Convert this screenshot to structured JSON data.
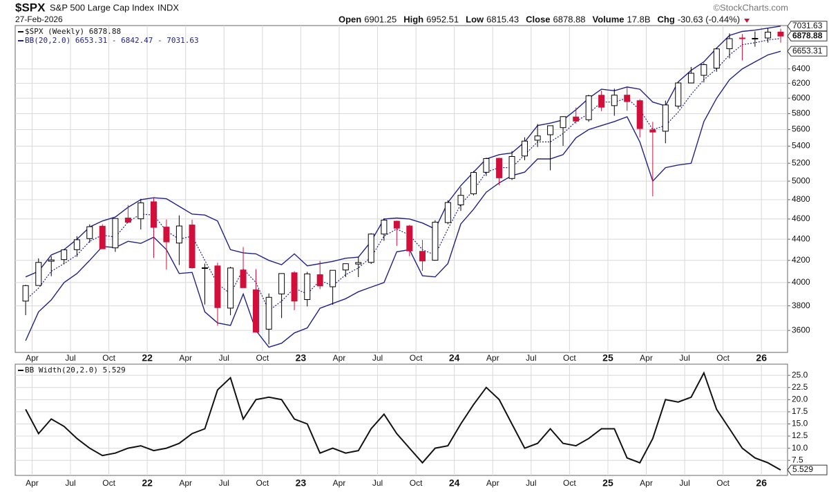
{
  "header": {
    "symbol": "$SPX",
    "name": "S&P 500 Large Cap Index",
    "exchange": "INDX",
    "date": "27-Feb-2026",
    "quote": [
      {
        "label": "Open",
        "value": "6901.25"
      },
      {
        "label": "High",
        "value": "6952.51"
      },
      {
        "label": "Low",
        "value": "6815.43"
      },
      {
        "label": "Close",
        "value": "6878.88"
      },
      {
        "label": "Volume",
        "value": "17.8B"
      },
      {
        "label": "Chg",
        "value": "-30.63 (-0.44%)"
      }
    ],
    "source": "©StockCharts.com"
  },
  "chart_data": [
    {
      "type": "candlestick",
      "legend": [
        "$SPX (Weekly) 6878.88",
        "BB(20,2.0) 6653.31 - 6842.47 - 7031.63"
      ],
      "log_scale": true,
      "grid": true,
      "up_color": "#000000",
      "down_color": "#d0103a",
      "band_color": "#20208c",
      "xlim": [
        2021.14,
        2026.17
      ],
      "ylim": [
        3430,
        7040
      ],
      "yticks": [
        3600,
        3800,
        4000,
        4200,
        4400,
        4600,
        4800,
        5000,
        5200,
        5400,
        5600,
        5800,
        6000,
        6200,
        6400
      ],
      "last_labels": [
        7031.63,
        6878.88,
        6653.31
      ],
      "xticks": [
        {
          "value": 2021.25,
          "label": "Apr"
        },
        {
          "value": 2021.5,
          "label": "Jul"
        },
        {
          "value": 2021.75,
          "label": "Oct"
        },
        {
          "value": 2022,
          "label": "22"
        },
        {
          "value": 2022.25,
          "label": "Apr"
        },
        {
          "value": 2022.5,
          "label": "Jul"
        },
        {
          "value": 2022.75,
          "label": "Oct"
        },
        {
          "value": 2023,
          "label": "23"
        },
        {
          "value": 2023.25,
          "label": "Apr"
        },
        {
          "value": 2023.5,
          "label": "Jul"
        },
        {
          "value": 2023.75,
          "label": "Oct"
        },
        {
          "value": 2024,
          "label": "24"
        },
        {
          "value": 2024.25,
          "label": "Apr"
        },
        {
          "value": 2024.5,
          "label": "Jul"
        },
        {
          "value": 2024.75,
          "label": "Oct"
        },
        {
          "value": 2025,
          "label": "25"
        },
        {
          "value": 2025.25,
          "label": "Apr"
        },
        {
          "value": 2025.5,
          "label": "Jul"
        },
        {
          "value": 2025.75,
          "label": "Oct"
        },
        {
          "value": 2026,
          "label": "26"
        }
      ],
      "x": [
        2021.208,
        2021.292,
        2021.375,
        2021.458,
        2021.542,
        2021.625,
        2021.708,
        2021.792,
        2021.875,
        2021.958,
        2022.042,
        2022.125,
        2022.208,
        2022.292,
        2022.375,
        2022.458,
        2022.542,
        2022.625,
        2022.708,
        2022.792,
        2022.875,
        2022.958,
        2023.042,
        2023.125,
        2023.208,
        2023.292,
        2023.375,
        2023.458,
        2023.542,
        2023.625,
        2023.708,
        2023.792,
        2023.875,
        2023.958,
        2024.042,
        2024.125,
        2024.208,
        2024.292,
        2024.375,
        2024.458,
        2024.542,
        2024.625,
        2024.708,
        2024.792,
        2024.875,
        2024.958,
        2025.042,
        2025.125,
        2025.208,
        2025.292,
        2025.375,
        2025.458,
        2025.542,
        2025.625,
        2025.708,
        2025.792,
        2025.875,
        2025.958,
        2026.042,
        2026.125
      ],
      "open": [
        3840,
        3974,
        4192,
        4207,
        4300,
        4406,
        4528,
        4317,
        4610,
        4602,
        4778,
        4519,
        4363,
        4540,
        4130,
        4149,
        3781,
        4112,
        3937,
        3610,
        3901,
        4087,
        3853,
        4070,
        3963,
        4112,
        4166,
        4181,
        4450,
        4578,
        4530,
        4284,
        4201,
        4564,
        4745,
        4862,
        5098,
        5257,
        5029,
        5284,
        5471,
        5537,
        5624,
        5758,
        5723,
        6040,
        5903,
        6041,
        5968,
        5597,
        5580,
        5897,
        6205,
        6310,
        6410,
        6690,
        6850,
        6840,
        6850,
        6940
      ],
      "high": [
        3980,
        4218,
        4238,
        4302,
        4430,
        4546,
        4546,
        4608,
        4744,
        4809,
        4818,
        4595,
        4637,
        4593,
        4170,
        4178,
        4141,
        4325,
        4119,
        3905,
        4080,
        4101,
        4095,
        4195,
        4110,
        4170,
        4231,
        4458,
        4607,
        4584,
        4541,
        4393,
        4588,
        4793,
        4931,
        5111,
        5265,
        5264,
        5342,
        5506,
        5669,
        5651,
        5767,
        5878,
        6045,
        6100,
        6128,
        6147,
        5987,
        5696,
        5969,
        6215,
        6427,
        6482,
        6700,
        6920,
        6910,
        6950,
        7000,
        6990
      ],
      "low": [
        3723,
        3973,
        4056,
        4164,
        4233,
        4367,
        4305,
        4279,
        4560,
        4495,
        4223,
        4115,
        4157,
        4124,
        3811,
        3637,
        3722,
        3955,
        3585,
        3492,
        3699,
        3764,
        3795,
        3943,
        3809,
        4049,
        4048,
        4167,
        4385,
        4336,
        4239,
        4104,
        4197,
        4547,
        4683,
        4845,
        5057,
        4954,
        5012,
        5235,
        5390,
        5120,
        5403,
        5675,
        5697,
        5833,
        5773,
        5837,
        5505,
        4835,
        5434,
        5862,
        6200,
        6212,
        6360,
        6550,
        6520,
        6720,
        6780,
        6780
      ],
      "close": [
        3973,
        4181,
        4204,
        4298,
        4395,
        4523,
        4308,
        4605,
        4567,
        4766,
        4516,
        4374,
        4530,
        4132,
        4132,
        3785,
        4130,
        3955,
        3586,
        3872,
        4080,
        3840,
        4077,
        3970,
        4109,
        4169,
        4180,
        4450,
        4589,
        4508,
        4288,
        4194,
        4568,
        4770,
        4846,
        5096,
        5254,
        5036,
        5278,
        5460,
        5522,
        5648,
        5762,
        5705,
        6032,
        5882,
        6041,
        5955,
        5612,
        5569,
        5912,
        6205,
        6339,
        6460,
        6688,
        6840,
        6849,
        6845,
        6939,
        6879
      ],
      "bands": {
        "upper": [
          4050,
          4100,
          4250,
          4300,
          4400,
          4520,
          4580,
          4620,
          4720,
          4800,
          4820,
          4810,
          4730,
          4650,
          4640,
          4580,
          4300,
          4270,
          4260,
          4200,
          4160,
          4260,
          4150,
          4170,
          4190,
          4220,
          4230,
          4380,
          4600,
          4610,
          4600,
          4560,
          4500,
          4770,
          4950,
          5100,
          5250,
          5300,
          5320,
          5450,
          5650,
          5680,
          5720,
          5850,
          6000,
          6120,
          6100,
          6150,
          6120,
          5950,
          5900,
          6220,
          6380,
          6500,
          6700,
          6890,
          6950,
          6970,
          7000,
          7031.63
        ],
        "middle": [
          3850,
          3950,
          4100,
          4170,
          4250,
          4380,
          4440,
          4420,
          4570,
          4650,
          4640,
          4480,
          4400,
          4430,
          4200,
          3990,
          3900,
          4120,
          4000,
          3760,
          3840,
          3950,
          3900,
          4020,
          3970,
          4070,
          4130,
          4230,
          4430,
          4500,
          4440,
          4300,
          4250,
          4500,
          4750,
          4900,
          5100,
          5150,
          5150,
          5300,
          5450,
          5450,
          5550,
          5700,
          5800,
          5950,
          5950,
          6000,
          5850,
          5600,
          5650,
          5820,
          6050,
          6250,
          6400,
          6600,
          6750,
          6780,
          6820,
          6842.47
        ],
        "lower": [
          3520,
          3750,
          3850,
          4000,
          4080,
          4200,
          4330,
          4320,
          4380,
          4360,
          4420,
          4300,
          4080,
          4090,
          3750,
          3660,
          3640,
          3900,
          3600,
          3470,
          3500,
          3580,
          3620,
          3780,
          3820,
          3860,
          3920,
          3960,
          4000,
          4280,
          4300,
          4060,
          4050,
          4170,
          4550,
          4700,
          4880,
          4980,
          5060,
          5100,
          5250,
          5250,
          5300,
          5500,
          5600,
          5650,
          5700,
          5760,
          5450,
          5000,
          5150,
          5180,
          5200,
          5700,
          6000,
          6250,
          6400,
          6500,
          6600,
          6653.31
        ]
      }
    },
    {
      "type": "line",
      "legend": [
        "BB Width(20,2.0) 5.529"
      ],
      "grid": true,
      "color": "#111111",
      "xlim": [
        2021.14,
        2026.17
      ],
      "ylim": [
        4.4,
        27.3
      ],
      "yticks": [
        7.5,
        {
          "value": 10,
          "label": "10.0"
        },
        12.5,
        {
          "value": 15,
          "label": "15.0"
        },
        17.5,
        {
          "value": 20,
          "label": "20.0"
        },
        22.5,
        {
          "value": 25,
          "label": "25.0"
        }
      ],
      "last_labels": [
        5.529
      ],
      "xticks": [
        {
          "value": 2021.25,
          "label": "Apr"
        },
        {
          "value": 2021.5,
          "label": "Jul"
        },
        {
          "value": 2021.75,
          "label": "Oct"
        },
        {
          "value": 2022,
          "label": "22"
        },
        {
          "value": 2022.25,
          "label": "Apr"
        },
        {
          "value": 2022.5,
          "label": "Jul"
        },
        {
          "value": 2022.75,
          "label": "Oct"
        },
        {
          "value": 2023,
          "label": "23"
        },
        {
          "value": 2023.25,
          "label": "Apr"
        },
        {
          "value": 2023.5,
          "label": "Jul"
        },
        {
          "value": 2023.75,
          "label": "Oct"
        },
        {
          "value": 2024,
          "label": "24"
        },
        {
          "value": 2024.25,
          "label": "Apr"
        },
        {
          "value": 2024.5,
          "label": "Jul"
        },
        {
          "value": 2024.75,
          "label": "Oct"
        },
        {
          "value": 2025,
          "label": "25"
        },
        {
          "value": 2025.25,
          "label": "Apr"
        },
        {
          "value": 2025.5,
          "label": "Jul"
        },
        {
          "value": 2025.75,
          "label": "Oct"
        },
        {
          "value": 2026,
          "label": "26"
        }
      ],
      "x": [
        2021.208,
        2021.292,
        2021.375,
        2021.458,
        2021.542,
        2021.625,
        2021.708,
        2021.792,
        2021.875,
        2021.958,
        2022.042,
        2022.125,
        2022.208,
        2022.292,
        2022.375,
        2022.458,
        2022.542,
        2022.625,
        2022.708,
        2022.792,
        2022.875,
        2022.958,
        2023.042,
        2023.125,
        2023.208,
        2023.292,
        2023.375,
        2023.458,
        2023.542,
        2023.625,
        2023.708,
        2023.792,
        2023.875,
        2023.958,
        2024.042,
        2024.125,
        2024.208,
        2024.292,
        2024.375,
        2024.458,
        2024.542,
        2024.625,
        2024.708,
        2024.792,
        2024.875,
        2024.958,
        2025.042,
        2025.125,
        2025.208,
        2025.292,
        2025.375,
        2025.458,
        2025.542,
        2025.625,
        2025.708,
        2025.792,
        2025.875,
        2025.958,
        2026.042,
        2026.125
      ],
      "values": [
        18,
        13,
        16,
        14.5,
        12,
        10,
        8.5,
        9,
        10,
        10.5,
        9.5,
        10,
        11,
        13,
        14,
        22,
        24.5,
        16,
        20,
        20.5,
        20,
        16,
        15,
        9,
        10,
        9,
        9.5,
        14,
        17,
        13,
        10,
        7,
        10,
        10.5,
        15,
        19,
        22.5,
        20,
        15,
        10,
        11,
        14,
        11,
        10.5,
        12,
        14,
        14,
        8,
        7,
        12,
        20,
        19.5,
        20.5,
        25.5,
        18,
        14,
        10,
        8,
        7,
        5.529
      ]
    }
  ]
}
